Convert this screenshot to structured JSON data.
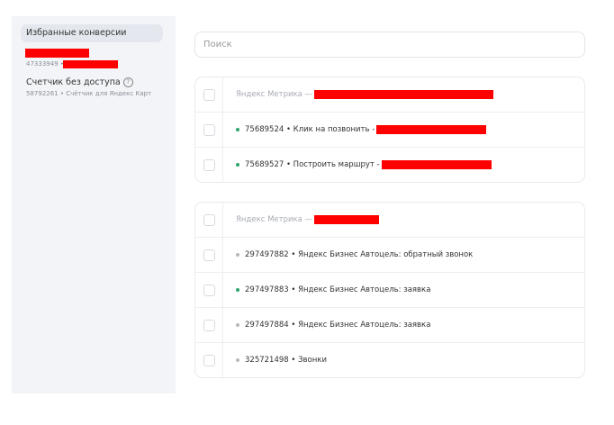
{
  "sidebar": {
    "favorites_label": "Избранные конверсии",
    "counter1_id": "47333949 •",
    "counter2_title": "Счетчик без доступа",
    "counter2_help": "?",
    "counter2_sub": "58792261 • Счётчик для Яндекс Карт"
  },
  "search": {
    "placeholder": "Поиск"
  },
  "groups": [
    {
      "header": "Яндекс Метрика —",
      "items": [
        {
          "text": "75689524 • Клик на позвонить -",
          "status": "active"
        },
        {
          "text": "75689527 • Построить маршрут -",
          "status": "active"
        }
      ]
    },
    {
      "header": "Яндекс Метрика —",
      "items": [
        {
          "text": "297497882 • Яндекс Бизнес Автоцель: обратный звонок",
          "status": "inactive"
        },
        {
          "text": "297497883 • Яндекс Бизнес Автоцель: заявка",
          "status": "active"
        },
        {
          "text": "297497884 • Яндекс Бизнес Автоцель: заявка",
          "status": "inactive"
        },
        {
          "text": "325721498 • Звонки",
          "status": "inactive"
        }
      ]
    }
  ],
  "colors": {
    "active": "#2ea56b",
    "inactive": "#b5b8bd",
    "redaction": "#ff0000"
  }
}
